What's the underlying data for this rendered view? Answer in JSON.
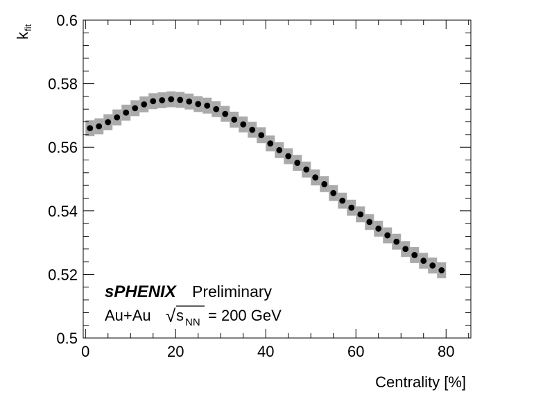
{
  "chart_data": {
    "type": "scatter",
    "xlabel": "Centrality [%]",
    "ylabel_main": "k",
    "ylabel_sub": "fit",
    "xlim": [
      -0.5,
      85.5
    ],
    "ylim": [
      0.5,
      0.6
    ],
    "xticks": [
      0,
      20,
      40,
      60,
      80
    ],
    "xtick_labels": [
      "0",
      "20",
      "40",
      "60",
      "80"
    ],
    "yticks": [
      0.5,
      0.52,
      0.54,
      0.56,
      0.58,
      0.6
    ],
    "ytick_labels": [
      "0.5",
      "0.52",
      "0.54",
      "0.56",
      "0.58",
      "0.6"
    ],
    "grid": false,
    "series": [
      {
        "marker_color": "#000000",
        "band_color": "#aaaaaa",
        "band_halfwidth_x": 1.0,
        "band_halfwidth_y": 0.0025,
        "x": [
          1,
          3,
          5,
          7,
          9,
          11,
          13,
          15,
          17,
          19,
          21,
          23,
          25,
          27,
          29,
          31,
          33,
          35,
          37,
          39,
          41,
          43,
          45,
          47,
          49,
          51,
          53,
          55,
          57,
          59,
          61,
          63,
          65,
          67,
          69,
          71,
          73,
          75,
          77,
          79
        ],
        "y": [
          0.566,
          0.5666,
          0.5679,
          0.5694,
          0.5709,
          0.5723,
          0.5735,
          0.5745,
          0.5748,
          0.5751,
          0.5749,
          0.5744,
          0.5736,
          0.5731,
          0.572,
          0.5705,
          0.5687,
          0.5672,
          0.5655,
          0.5638,
          0.5612,
          0.5591,
          0.5572,
          0.5551,
          0.553,
          0.5505,
          0.5484,
          0.5456,
          0.5432,
          0.541,
          0.5389,
          0.5365,
          0.5344,
          0.5323,
          0.5303,
          0.528,
          0.5261,
          0.5243,
          0.5228,
          0.5213
        ]
      }
    ],
    "annotations": {
      "experiment": "sPHENIX",
      "status": "Preliminary",
      "system": "Au+Au",
      "sqrt_symbol": "√",
      "energy_var": "s",
      "energy_sub": "NN",
      "energy_value": "= 200 GeV"
    }
  }
}
